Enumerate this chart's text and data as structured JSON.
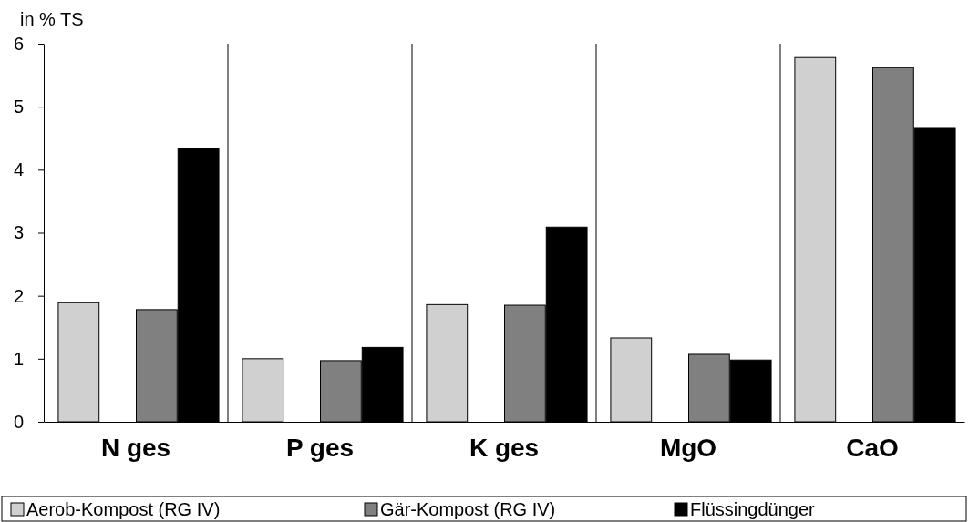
{
  "chart_data": {
    "type": "bar",
    "ylabel": "in % TS",
    "categories": [
      "N ges",
      "P ges",
      "K ges",
      "MgO",
      "CaO"
    ],
    "series": [
      {
        "name": "Aerob-Kompost (RG IV)",
        "color": "#d0d0d0",
        "values": [
          1.89,
          1.0,
          1.86,
          1.33,
          5.78
        ]
      },
      {
        "name": "Gär-Kompost (RG IV)",
        "color": "#808080",
        "values": [
          1.78,
          0.97,
          1.85,
          1.07,
          5.62
        ]
      },
      {
        "name": "Flüssingdünger",
        "color": "#000000",
        "values": [
          4.34,
          1.18,
          3.09,
          0.98,
          4.67
        ]
      }
    ],
    "ylim": [
      0,
      6
    ],
    "yticks": [
      0,
      1,
      2,
      3,
      4,
      5,
      6
    ],
    "grid": "x",
    "legend": "bottom"
  }
}
